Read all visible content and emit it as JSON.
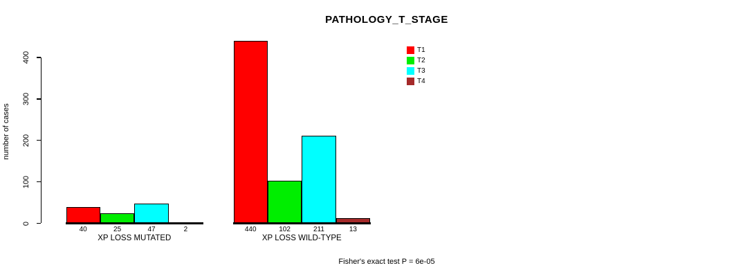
{
  "chart_data": {
    "type": "bar",
    "title": "PATHOLOGY_T_STAGE",
    "ylabel": "number of cases",
    "xlabel": "",
    "ylim": [
      0,
      440
    ],
    "yticks": [
      0,
      100,
      200,
      300,
      400
    ],
    "grid": false,
    "legend_position": "top-right",
    "categories": [
      "XP LOSS MUTATED",
      "XP LOSS WILD-TYPE"
    ],
    "series": [
      {
        "name": "T1",
        "color": "#ff0000",
        "values": [
          40,
          440
        ]
      },
      {
        "name": "T2",
        "color": "#00ee00",
        "values": [
          25,
          102
        ]
      },
      {
        "name": "T3",
        "color": "#00ffff",
        "values": [
          47,
          211
        ]
      },
      {
        "name": "T4",
        "color": "#a52a2a",
        "values": [
          2,
          13
        ]
      }
    ],
    "bar_value_labels": [
      [
        40,
        25,
        47,
        2
      ],
      [
        440,
        102,
        211,
        13
      ]
    ],
    "annotation": "Fisher's exact test P = 6e-05"
  }
}
